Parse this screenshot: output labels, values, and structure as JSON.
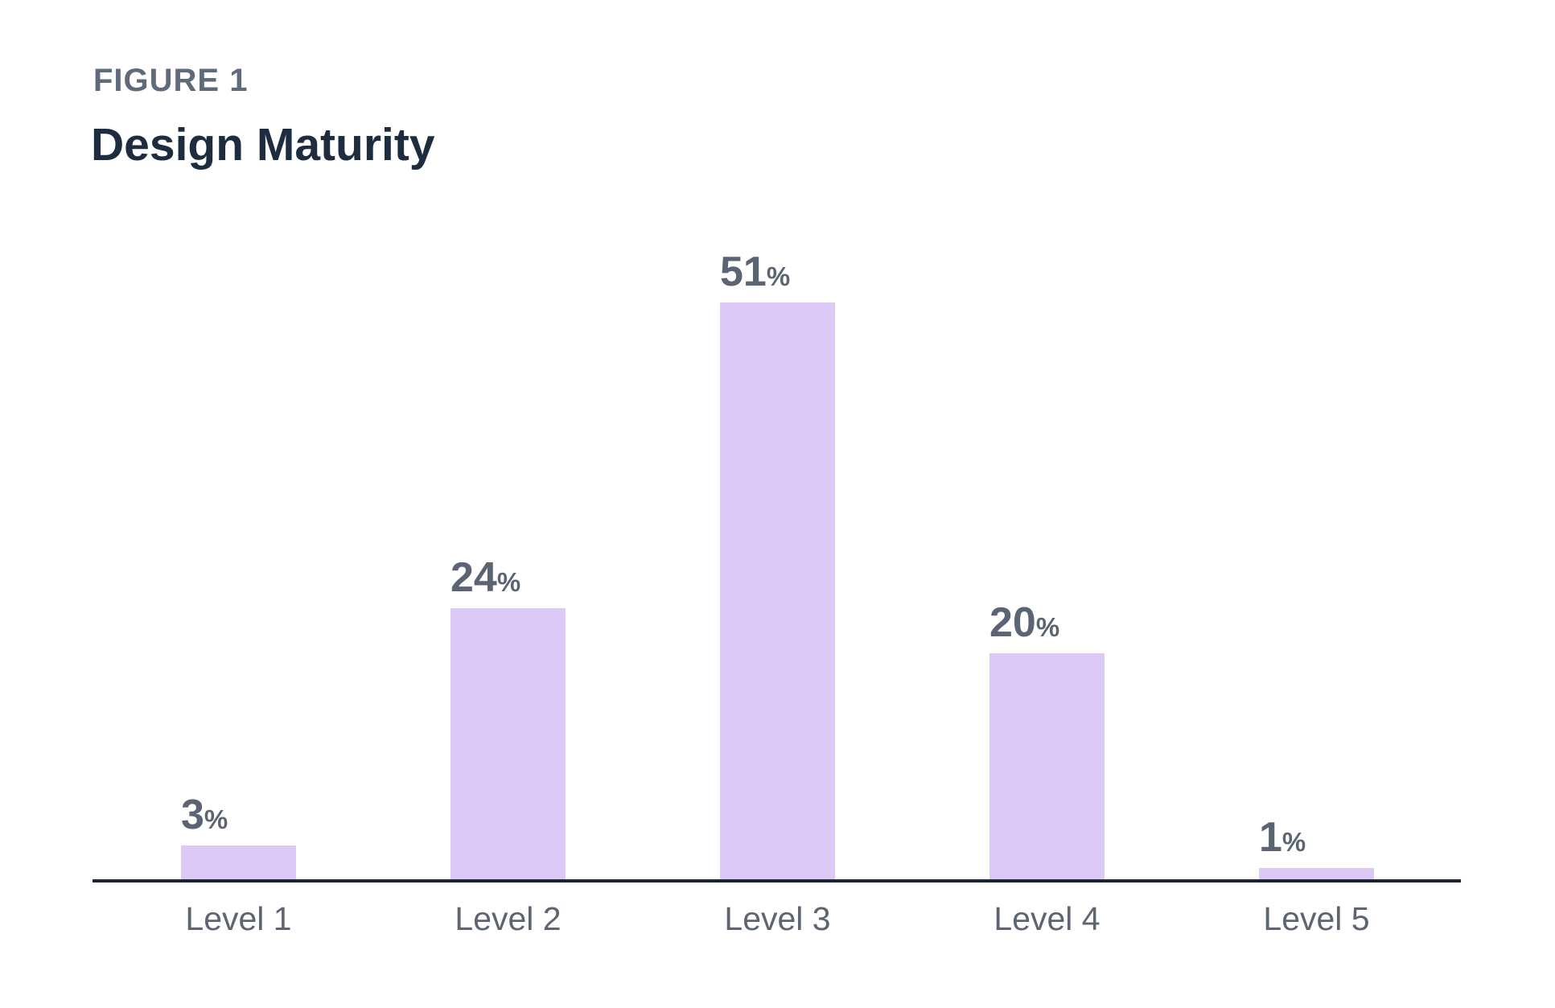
{
  "figure_label": "FIGURE 1",
  "title": "Design Maturity",
  "colors": {
    "bar_fill": "#ddc9f5",
    "axis_line": "#1b2330",
    "figure_label": "#5f6b7a",
    "title": "#1d2c3e",
    "value_label": "#5b6472",
    "category_label": "#5c6571"
  },
  "chart_data": {
    "type": "bar",
    "title": "Design Maturity",
    "subtitle": "FIGURE 1",
    "categories": [
      "Level 1",
      "Level 2",
      "Level 3",
      "Level 4",
      "Level 5"
    ],
    "values": [
      3,
      24,
      51,
      20,
      1
    ],
    "unit": "%",
    "xlabel": "",
    "ylabel": "",
    "ylim": [
      0,
      55
    ],
    "grid": false,
    "legend": "none",
    "data_labels": "above-bars"
  }
}
